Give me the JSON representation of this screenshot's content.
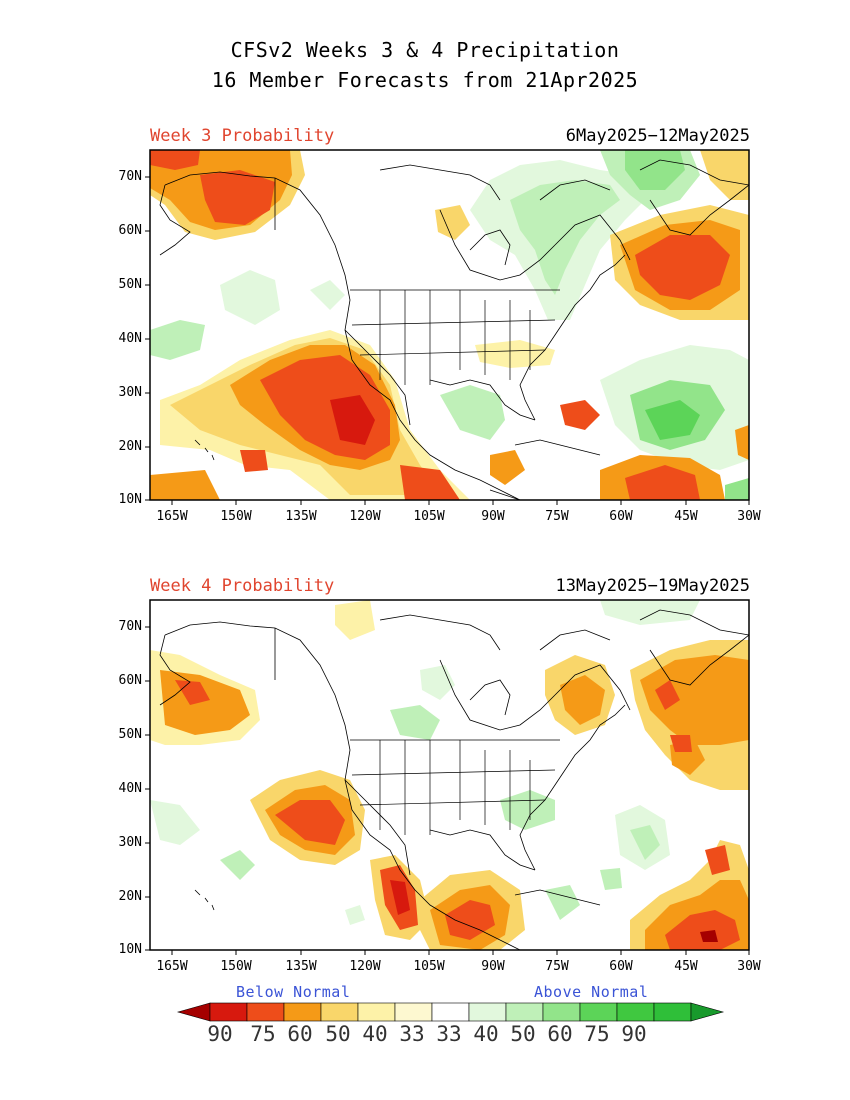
{
  "title": {
    "line1": "CFSv2 Weeks 3 & 4 Precipitation",
    "line2": "16 Member Forecasts from 21Apr2025"
  },
  "panels": [
    {
      "label": "Week 3 Probability",
      "dates": "6May2025−12May2025",
      "lat_ticks": [
        "70N",
        "60N",
        "50N",
        "40N",
        "30N",
        "20N",
        "10N"
      ],
      "lon_ticks": [
        "165W",
        "150W",
        "135W",
        "120W",
        "105W",
        "90W",
        "75W",
        "60W",
        "45W",
        "30W"
      ]
    },
    {
      "label": "Week 4 Probability",
      "dates": "13May2025−19May2025",
      "lat_ticks": [
        "70N",
        "60N",
        "50N",
        "40N",
        "30N",
        "20N",
        "10N"
      ],
      "lon_ticks": [
        "165W",
        "150W",
        "135W",
        "120W",
        "105W",
        "90W",
        "75W",
        "60W",
        "45W",
        "30W"
      ]
    }
  ],
  "legend": {
    "below_label": "Below Normal",
    "above_label": "Above Normal",
    "values": [
      "90",
      "75",
      "60",
      "50",
      "40",
      "33",
      "33",
      "40",
      "50",
      "60",
      "75",
      "90"
    ],
    "colors": [
      "#a50000",
      "#d7190e",
      "#ee4d1a",
      "#f59a17",
      "#f9d66a",
      "#fdf2a8",
      "#ffffff",
      "#e2f8dd",
      "#bff0b8",
      "#92e48a",
      "#5cd458",
      "#2fbf39",
      "#189a2c"
    ],
    "colors_note": ""
  },
  "colors": {
    "below_caption": "#3b54d6",
    "panel_label": "#e0452f"
  }
}
